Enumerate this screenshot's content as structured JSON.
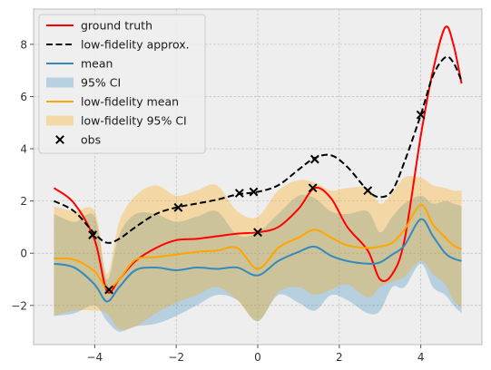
{
  "chart_data": {
    "type": "line",
    "title": "",
    "xlabel": "",
    "ylabel": "",
    "xlim": [
      -5.5,
      5.5
    ],
    "ylim": [
      -3.5,
      9.35
    ],
    "xticks": [
      -4,
      -2,
      0,
      2,
      4
    ],
    "yticks": [
      -2,
      0,
      2,
      4,
      6,
      8
    ],
    "xtick_labels": [
      "−4",
      "−2",
      "0",
      "2",
      "4"
    ],
    "ytick_labels": [
      "−2",
      "0",
      "2",
      "4",
      "6",
      "8"
    ],
    "grid": true,
    "legend_position": "top-left",
    "x": [
      -5.0,
      -4.5,
      -4.0,
      -3.7,
      -3.4,
      -3.0,
      -2.5,
      -2.0,
      -1.5,
      -1.0,
      -0.5,
      0.0,
      0.5,
      1.0,
      1.4,
      1.8,
      2.2,
      2.7,
      3.0,
      3.3,
      3.6,
      4.0,
      4.3,
      4.6,
      4.8,
      5.0
    ],
    "series": [
      {
        "name": "ground truth",
        "kind": "line",
        "color": "#ff0000",
        "dash": "solid",
        "y": [
          2.5,
          1.9,
          0.5,
          -1.45,
          -1.0,
          -0.3,
          0.2,
          0.5,
          0.55,
          0.65,
          0.75,
          0.8,
          1.0,
          1.7,
          2.5,
          2.1,
          1.0,
          0.1,
          -1.0,
          -0.8,
          0.5,
          4.5,
          7.0,
          8.65,
          8.0,
          6.5
        ]
      },
      {
        "name": "low-fidelity approx.",
        "kind": "line",
        "color": "#000000",
        "dash": "dashed",
        "y": [
          2.0,
          1.6,
          0.75,
          0.4,
          0.55,
          1.0,
          1.5,
          1.75,
          1.9,
          2.05,
          2.25,
          2.35,
          2.6,
          3.2,
          3.65,
          3.75,
          3.3,
          2.4,
          2.15,
          2.4,
          3.5,
          5.3,
          6.8,
          7.5,
          7.3,
          6.6
        ]
      },
      {
        "name": "mean",
        "kind": "line",
        "color": "#348abd",
        "dash": "solid",
        "y": [
          -0.4,
          -0.55,
          -1.2,
          -1.85,
          -1.3,
          -0.65,
          -0.55,
          -0.65,
          -0.55,
          -0.6,
          -0.55,
          -0.85,
          -0.3,
          0.05,
          0.25,
          -0.1,
          -0.3,
          -0.4,
          -0.35,
          -0.05,
          0.3,
          1.3,
          0.65,
          0.0,
          -0.2,
          -0.3
        ]
      },
      {
        "name": "95% CI",
        "kind": "band",
        "color": "#348abd",
        "opacity": 0.3,
        "lower": [
          -2.4,
          -2.3,
          -2.0,
          -2.6,
          -3.0,
          -2.8,
          -2.7,
          -2.4,
          -2.0,
          -1.6,
          -1.8,
          -2.6,
          -1.6,
          -1.9,
          -2.2,
          -1.6,
          -1.8,
          -2.3,
          -2.2,
          -1.3,
          -1.3,
          -0.4,
          -1.3,
          -1.6,
          -2.0,
          -2.3
        ],
        "upper": [
          1.5,
          1.2,
          1.4,
          -1.0,
          0.7,
          1.5,
          1.5,
          1.2,
          1.4,
          1.6,
          0.7,
          0.8,
          1.5,
          2.2,
          2.1,
          1.6,
          1.5,
          1.6,
          0.8,
          1.4,
          1.9,
          2.2,
          1.9,
          2.0,
          1.9,
          1.8
        ]
      },
      {
        "name": "low-fidelity mean",
        "kind": "line",
        "color": "#ffa500",
        "dash": "solid",
        "y": [
          -0.2,
          -0.25,
          -0.7,
          -1.35,
          -1.0,
          -0.25,
          -0.15,
          -0.05,
          0.05,
          0.1,
          0.2,
          -0.6,
          0.2,
          0.6,
          0.9,
          0.6,
          0.3,
          0.2,
          0.25,
          0.4,
          0.9,
          1.85,
          1.1,
          0.6,
          0.3,
          0.15
        ]
      },
      {
        "name": "low-fidelity 95% CI",
        "kind": "band",
        "color": "#ffa500",
        "opacity": 0.3,
        "lower": [
          -2.4,
          -2.2,
          -2.2,
          -2.3,
          -2.9,
          -2.8,
          -2.3,
          -1.9,
          -1.6,
          -1.3,
          -1.8,
          -2.6,
          -1.5,
          -1.3,
          -1.6,
          -1.4,
          -1.2,
          -1.7,
          -1.3,
          -1.1,
          -0.9,
          -0.3,
          -0.8,
          -1.2,
          -1.8,
          -2.1
        ],
        "upper": [
          1.8,
          1.6,
          1.6,
          -0.8,
          1.2,
          2.2,
          2.6,
          2.2,
          2.4,
          2.6,
          1.6,
          1.4,
          2.4,
          2.8,
          2.7,
          2.4,
          2.5,
          2.5,
          1.9,
          2.3,
          2.9,
          2.9,
          2.6,
          2.5,
          2.4,
          2.4
        ]
      },
      {
        "name": "obs",
        "kind": "scatter",
        "color": "#000000",
        "marker": "x",
        "points": [
          [
            -4.05,
            0.7
          ],
          [
            -3.65,
            -1.4
          ],
          [
            -1.95,
            1.75
          ],
          [
            -0.45,
            2.3
          ],
          [
            -0.1,
            2.35
          ],
          [
            0.0,
            0.8
          ],
          [
            1.35,
            2.5
          ],
          [
            1.4,
            3.6
          ],
          [
            2.7,
            2.4
          ],
          [
            4.0,
            5.3
          ]
        ]
      }
    ],
    "legend": [
      {
        "label": "ground truth",
        "ref": 0
      },
      {
        "label": "low-fidelity approx.",
        "ref": 1
      },
      {
        "label": "mean",
        "ref": 2
      },
      {
        "label": "95% CI",
        "ref": 3
      },
      {
        "label": "low-fidelity mean",
        "ref": 4
      },
      {
        "label": "low-fidelity 95% CI",
        "ref": 5
      },
      {
        "label": "obs",
        "ref": 6
      }
    ],
    "colors": {
      "axes_bg": "#eeeeee",
      "grid": "#b2b2b2",
      "spine": "#bcbcbc"
    }
  }
}
